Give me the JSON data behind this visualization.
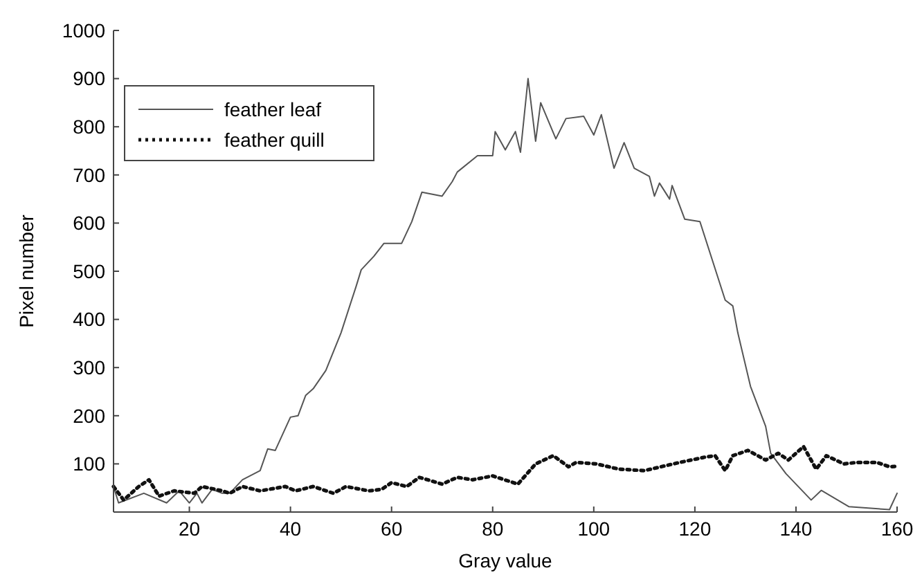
{
  "chart_data": {
    "type": "line",
    "xlabel": "Gray value",
    "ylabel": "Pixel number",
    "xlim": [
      5,
      160
    ],
    "ylim": [
      0,
      1000
    ],
    "xticks": [
      20,
      40,
      60,
      80,
      100,
      120,
      140,
      160
    ],
    "yticks": [
      100,
      200,
      300,
      400,
      500,
      600,
      700,
      800,
      900,
      1000
    ],
    "grid": false,
    "legend": "top left",
    "marker": "none",
    "series": [
      {
        "name": "feather leaf",
        "color": "#555555",
        "line_style": "solid",
        "x": [
          5,
          6,
          11,
          15.5,
          18,
          20,
          21.5,
          22.5,
          24.5,
          26.5,
          28,
          30.5,
          34,
          35.5,
          37,
          40,
          41.5,
          43,
          44.5,
          47,
          50,
          53,
          54,
          56.5,
          58.5,
          62,
          64,
          66,
          70,
          72,
          73,
          77,
          80,
          80.5,
          82.5,
          84.5,
          85.5,
          87,
          88.5,
          89.5,
          92.5,
          94.5,
          98,
          100,
          101.5,
          104,
          106,
          108,
          111,
          112,
          113,
          115,
          115.5,
          118,
          121,
          126,
          127.5,
          128.5,
          131,
          134,
          135,
          138,
          143,
          145,
          150.5,
          158.5,
          160
        ],
        "values": [
          53,
          19,
          39,
          19,
          44,
          19,
          39,
          19,
          47,
          39,
          39,
          67,
          86,
          131,
          128,
          197,
          200,
          242,
          256,
          294,
          372,
          469,
          503,
          531,
          558,
          558,
          603,
          664,
          656,
          686,
          706,
          740,
          740,
          790,
          752,
          790,
          747,
          900,
          770,
          850,
          775,
          817,
          822,
          783,
          825,
          714,
          767,
          714,
          697,
          656,
          683,
          650,
          678,
          608,
          603,
          440,
          428,
          372,
          261,
          178,
          122,
          80,
          25,
          45,
          11,
          5,
          39
        ]
      },
      {
        "name": "feather quill",
        "color": "#111111",
        "line_style": "dotted",
        "x": [
          5,
          7,
          10,
          12,
          14,
          17,
          21,
          22.5,
          26.5,
          28,
          30.5,
          34,
          39,
          41,
          44.5,
          48.5,
          51,
          55.5,
          58,
          60,
          63,
          65.5,
          70,
          73,
          76,
          80,
          85,
          88.5,
          92,
          95,
          96.5,
          100.5,
          105,
          110,
          117,
          122,
          124,
          126,
          127.5,
          130.5,
          134,
          136.5,
          138.5,
          141.5,
          144,
          146,
          149.5,
          152,
          156,
          158.5,
          160
        ],
        "values": [
          53,
          25,
          53,
          67,
          33,
          44,
          39,
          53,
          44,
          39,
          53,
          44,
          53,
          44,
          53,
          39,
          53,
          44,
          47,
          61,
          53,
          72,
          58,
          72,
          67,
          75,
          58,
          100,
          117,
          94,
          103,
          100,
          89,
          86,
          103,
          114,
          117,
          86,
          117,
          128,
          108,
          122,
          108,
          136,
          89,
          117,
          100,
          103,
          103,
          94,
          95
        ]
      }
    ]
  }
}
